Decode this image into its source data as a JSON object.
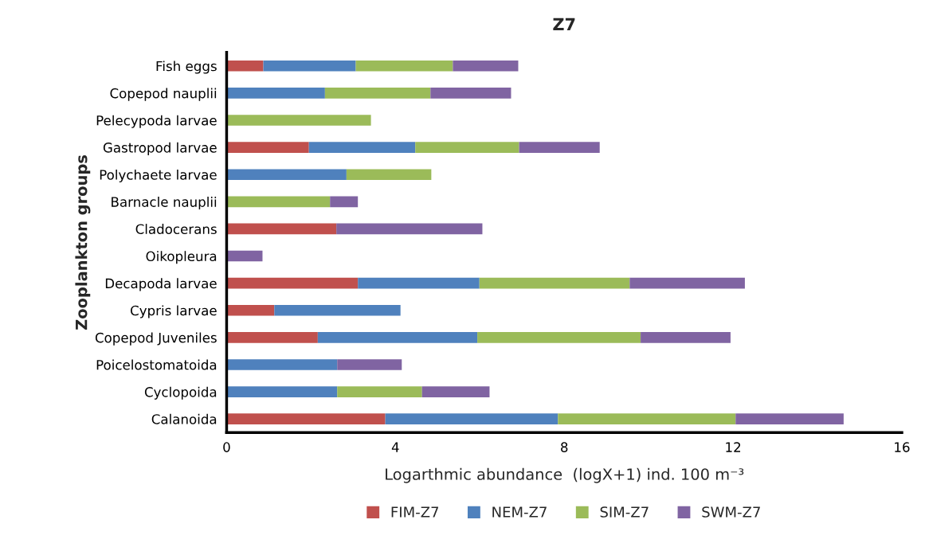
{
  "chart_data": {
    "type": "bar",
    "orientation": "horizontal",
    "stacked": true,
    "title": "Z7",
    "xlabel": "Logarthmic abundance  (logX+1) ind. 100 m⁻³",
    "ylabel": "Zooplankton groups",
    "categories": [
      "Fish eggs",
      "Copepod nauplii",
      "Pelecypoda larvae",
      "Gastropod larvae",
      "Polychaete larvae",
      "Barnacle nauplii",
      "Cladocerans",
      "Oikopleura",
      "Decapoda larvae",
      "Cypris larvae",
      "Copepod Juveniles",
      "Poicelostomatoida",
      "Cyclopoida",
      "Calanoida"
    ],
    "series": [
      {
        "name": "FIM-Z7",
        "color": "#c0504d",
        "values": [
          0.87,
          null,
          null,
          1.95,
          null,
          null,
          2.6,
          null,
          3.11,
          1.13,
          2.16,
          null,
          null,
          3.76
        ]
      },
      {
        "name": "NEM-Z7",
        "color": "#4f81bd",
        "values": [
          2.19,
          2.33,
          null,
          2.52,
          2.84,
          null,
          null,
          null,
          2.88,
          2.99,
          3.78,
          2.62,
          2.62,
          4.09
        ]
      },
      {
        "name": "SIM-Z7",
        "color": "#9bbb59",
        "values": [
          2.3,
          2.5,
          3.42,
          2.46,
          2.01,
          2.45,
          null,
          null,
          3.56,
          null,
          3.87,
          null,
          2.01,
          4.21
        ]
      },
      {
        "name": "SWM-Z7",
        "color": "#8064a2",
        "values": [
          1.55,
          1.91,
          null,
          1.91,
          null,
          0.66,
          3.46,
          0.85,
          2.73,
          null,
          2.13,
          1.53,
          1.6,
          2.56
        ]
      }
    ],
    "xlim": [
      0,
      16
    ],
    "xticks": [
      0,
      4,
      8,
      12,
      16
    ],
    "grid": false,
    "legend": "bottom"
  }
}
